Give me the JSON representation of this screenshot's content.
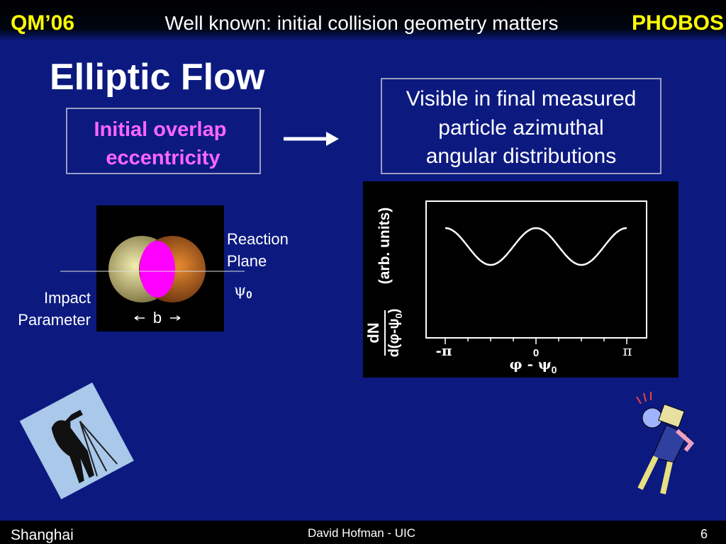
{
  "header": {
    "left": "QM’06",
    "title": "Well known: initial collision geometry matters",
    "right": "PHOBOS"
  },
  "slide_title": "Elliptic Flow",
  "initial_box": {
    "lines": [
      "Initial overlap",
      "eccentricity"
    ]
  },
  "final_box": {
    "lines": [
      "Visible in final measured",
      "particle azimuthal",
      "angular distributions"
    ]
  },
  "overlap_diagram": {
    "reaction_plane": [
      "Reaction",
      "Plane"
    ],
    "psi": {
      "symbol": "ψ",
      "subscript": "0"
    },
    "impact_parameter": [
      "Impact",
      "Parameter"
    ],
    "b": "b"
  },
  "distribution_plot": {
    "numerator": "dN",
    "denominator": {
      "text": "d(φ-ψ",
      "subscript": "0",
      "close": ")"
    },
    "units": "(arb. units)",
    "xtick_labels": [
      "-π",
      "0",
      "π"
    ],
    "xlabel": {
      "text": "φ - ψ",
      "subscript": "0"
    }
  },
  "footer": {
    "left": "Shanghai",
    "center": "David Hofman - UIC",
    "page": "6"
  }
}
